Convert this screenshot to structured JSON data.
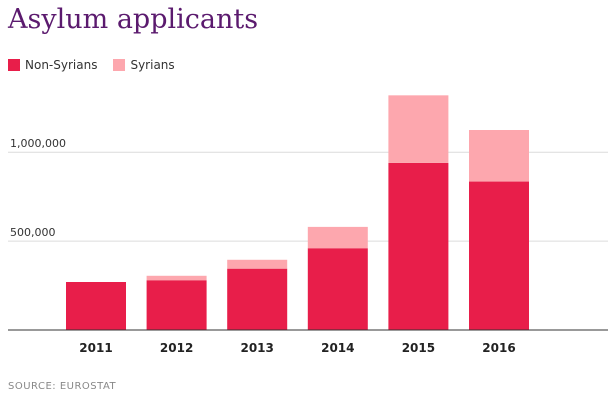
{
  "title": "Asylum applicants",
  "source": "SOURCE: EUROSTAT",
  "legend": [
    {
      "label": "Non-Syrians",
      "color": "#e81e4a"
    },
    {
      "label": "Syrians",
      "color": "#fda7ae"
    }
  ],
  "chart_data": {
    "type": "bar",
    "stacked": true,
    "categories": [
      "2011",
      "2012",
      "2013",
      "2014",
      "2015",
      "2016"
    ],
    "series": [
      {
        "name": "Non-Syrians",
        "values": [
          270000,
          280000,
          345000,
          460000,
          940000,
          835000
        ],
        "color": "#e81e4a"
      },
      {
        "name": "Syrians",
        "values": [
          0,
          25000,
          50000,
          120000,
          380000,
          290000
        ],
        "color": "#fda7ae"
      }
    ],
    "yticks": [
      500000,
      1000000
    ],
    "ytick_labels": [
      "500,000",
      "1,000,000"
    ],
    "ylim": [
      0,
      1350000
    ],
    "grid": true
  }
}
